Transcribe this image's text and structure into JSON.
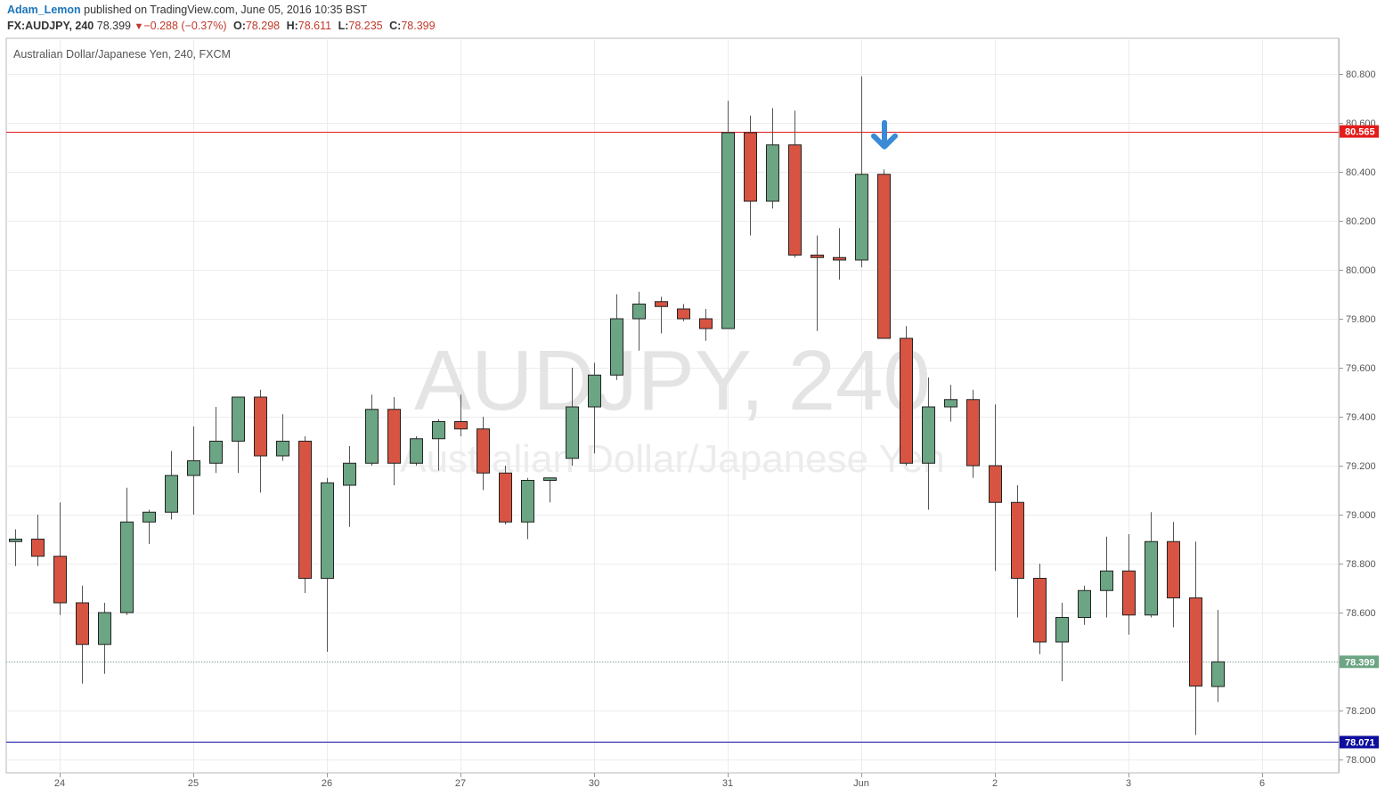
{
  "header": {
    "author": "Adam_Lemon",
    "published_text": "published on TradingView.com, June 05, 2016 10:35 BST",
    "symbol": "FX:AUDJPY, 240",
    "last": "78.399",
    "change": "−0.288 (−0.37%)",
    "o_label": "O:",
    "o_value": "78.298",
    "h_label": "H:",
    "h_value": "78.611",
    "l_label": "L:",
    "l_value": "78.235",
    "c_label": "C:",
    "c_value": "78.399"
  },
  "chart_data": {
    "type": "candlestick",
    "title": "Australian Dollar/Japanese Yen, 240, FXCM",
    "watermark_main": "AUDJPY, 240",
    "watermark_sub": "Australian Dollar/Japanese Yen",
    "ylim": [
      77.93,
      80.92
    ],
    "y_ticks": [
      "78.000",
      "78.200",
      "78.400",
      "78.600",
      "78.800",
      "79.000",
      "79.200",
      "79.400",
      "79.600",
      "79.800",
      "80.000",
      "80.200",
      "80.400",
      "80.600",
      "80.800"
    ],
    "x_ticks": [
      "24",
      "25",
      "26",
      "27",
      "30",
      "31",
      "Jun",
      "2",
      "3",
      "6"
    ],
    "x_tick_candle_index": [
      2,
      8,
      14,
      20,
      26,
      32,
      38,
      44,
      50,
      56
    ],
    "grid": true,
    "colors": {
      "up": "#6ba583",
      "down": "#d75442",
      "wick": "#555555",
      "resistance": "#e41b1b",
      "support": "#0d0d9e",
      "last_price": "#6ba583",
      "arrow": "#3a8ad6"
    },
    "candles": [
      {
        "o": 78.89,
        "h": 78.94,
        "l": 78.79,
        "c": 78.9
      },
      {
        "o": 78.9,
        "h": 79.0,
        "l": 78.79,
        "c": 78.83
      },
      {
        "o": 78.83,
        "h": 79.05,
        "l": 78.59,
        "c": 78.64
      },
      {
        "o": 78.64,
        "h": 78.71,
        "l": 78.31,
        "c": 78.47
      },
      {
        "o": 78.47,
        "h": 78.64,
        "l": 78.35,
        "c": 78.6
      },
      {
        "o": 78.6,
        "h": 79.11,
        "l": 78.59,
        "c": 78.97
      },
      {
        "o": 78.97,
        "h": 79.02,
        "l": 78.88,
        "c": 79.01
      },
      {
        "o": 79.01,
        "h": 79.26,
        "l": 78.98,
        "c": 79.16
      },
      {
        "o": 79.16,
        "h": 79.36,
        "l": 79.0,
        "c": 79.22
      },
      {
        "o": 79.21,
        "h": 79.44,
        "l": 79.17,
        "c": 79.3
      },
      {
        "o": 79.3,
        "h": 79.48,
        "l": 79.17,
        "c": 79.48
      },
      {
        "o": 79.48,
        "h": 79.51,
        "l": 79.09,
        "c": 79.24
      },
      {
        "o": 79.24,
        "h": 79.41,
        "l": 79.22,
        "c": 79.3
      },
      {
        "o": 79.3,
        "h": 79.32,
        "l": 78.68,
        "c": 78.74
      },
      {
        "o": 78.74,
        "h": 79.15,
        "l": 78.44,
        "c": 79.13
      },
      {
        "o": 79.12,
        "h": 79.28,
        "l": 78.95,
        "c": 79.21
      },
      {
        "o": 79.21,
        "h": 79.49,
        "l": 79.2,
        "c": 79.43
      },
      {
        "o": 79.43,
        "h": 79.48,
        "l": 79.12,
        "c": 79.21
      },
      {
        "o": 79.21,
        "h": 79.32,
        "l": 79.2,
        "c": 79.31
      },
      {
        "o": 79.31,
        "h": 79.39,
        "l": 79.18,
        "c": 79.38
      },
      {
        "o": 79.38,
        "h": 79.49,
        "l": 79.32,
        "c": 79.35
      },
      {
        "o": 79.35,
        "h": 79.4,
        "l": 79.1,
        "c": 79.17
      },
      {
        "o": 79.17,
        "h": 79.2,
        "l": 78.96,
        "c": 78.97
      },
      {
        "o": 78.97,
        "h": 79.15,
        "l": 78.9,
        "c": 79.14
      },
      {
        "o": 79.14,
        "h": 79.15,
        "l": 79.05,
        "c": 79.15
      },
      {
        "o": 79.23,
        "h": 79.6,
        "l": 79.2,
        "c": 79.44
      },
      {
        "o": 79.44,
        "h": 79.62,
        "l": 79.25,
        "c": 79.57
      },
      {
        "o": 79.57,
        "h": 79.9,
        "l": 79.55,
        "c": 79.8
      },
      {
        "o": 79.8,
        "h": 79.91,
        "l": 79.67,
        "c": 79.86
      },
      {
        "o": 79.87,
        "h": 79.89,
        "l": 79.74,
        "c": 79.85
      },
      {
        "o": 79.84,
        "h": 79.86,
        "l": 79.79,
        "c": 79.8
      },
      {
        "o": 79.8,
        "h": 79.84,
        "l": 79.71,
        "c": 79.76
      },
      {
        "o": 79.76,
        "h": 80.69,
        "l": 79.76,
        "c": 80.56
      },
      {
        "o": 80.56,
        "h": 80.63,
        "l": 80.14,
        "c": 80.28
      },
      {
        "o": 80.28,
        "h": 80.66,
        "l": 80.25,
        "c": 80.51
      },
      {
        "o": 80.51,
        "h": 80.65,
        "l": 80.05,
        "c": 80.06
      },
      {
        "o": 80.06,
        "h": 80.14,
        "l": 79.75,
        "c": 80.05
      },
      {
        "o": 80.05,
        "h": 80.17,
        "l": 79.96,
        "c": 80.04
      },
      {
        "o": 80.04,
        "h": 80.79,
        "l": 80.01,
        "c": 80.39
      },
      {
        "o": 80.39,
        "h": 80.41,
        "l": 79.72,
        "c": 79.72
      },
      {
        "o": 79.72,
        "h": 79.77,
        "l": 79.2,
        "c": 79.21
      },
      {
        "o": 79.21,
        "h": 79.56,
        "l": 79.02,
        "c": 79.44
      },
      {
        "o": 79.44,
        "h": 79.53,
        "l": 79.38,
        "c": 79.47
      },
      {
        "o": 79.47,
        "h": 79.51,
        "l": 79.15,
        "c": 79.2
      },
      {
        "o": 79.2,
        "h": 79.45,
        "l": 78.77,
        "c": 79.05
      },
      {
        "o": 79.05,
        "h": 79.12,
        "l": 78.58,
        "c": 78.74
      },
      {
        "o": 78.74,
        "h": 78.8,
        "l": 78.43,
        "c": 78.48
      },
      {
        "o": 78.48,
        "h": 78.64,
        "l": 78.32,
        "c": 78.58
      },
      {
        "o": 78.58,
        "h": 78.71,
        "l": 78.55,
        "c": 78.69
      },
      {
        "o": 78.69,
        "h": 78.91,
        "l": 78.58,
        "c": 78.77
      },
      {
        "o": 78.77,
        "h": 78.92,
        "l": 78.51,
        "c": 78.59
      },
      {
        "o": 78.59,
        "h": 79.01,
        "l": 78.58,
        "c": 78.89
      },
      {
        "o": 78.89,
        "h": 78.97,
        "l": 78.54,
        "c": 78.66
      },
      {
        "o": 78.66,
        "h": 78.89,
        "l": 78.1,
        "c": 78.3
      },
      {
        "o": 78.298,
        "h": 78.611,
        "l": 78.235,
        "c": 78.399
      }
    ],
    "horizontal_lines": [
      {
        "price": 80.565,
        "label": "80.565",
        "kind": "resistance"
      },
      {
        "price": 78.071,
        "label": "78.071",
        "kind": "support"
      },
      {
        "price": 78.399,
        "label": "78.399",
        "kind": "last_price",
        "dotted": true
      }
    ],
    "annotation": {
      "type": "down-arrow",
      "candle_index": 39,
      "price": 80.55
    }
  }
}
